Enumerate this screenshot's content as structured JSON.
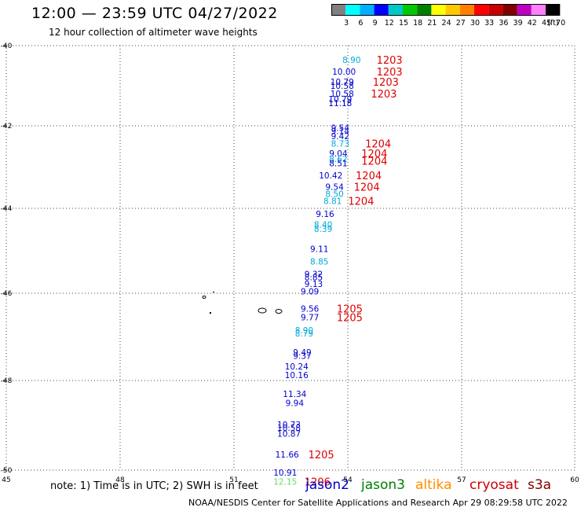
{
  "header": {
    "title": "12:00 — 23:59 UTC 04/27/2022",
    "subtitle": "12 hour collection of altimeter wave heights"
  },
  "colorbar": {
    "colors": [
      "#808080",
      "#00ffff",
      "#00b0ff",
      "#0000ff",
      "#00c8c8",
      "#00c800",
      "#008000",
      "#ffff00",
      "#ffc800",
      "#ff8000",
      "#ff0000",
      "#c80000",
      "#800000",
      "#c000c0",
      "#ff80ff",
      "#000000"
    ],
    "labels": [
      "3",
      "6",
      "9",
      "12",
      "15",
      "18",
      "21",
      "24",
      "27",
      "30",
      "33",
      "36",
      "39",
      "42",
      "45",
      "70"
    ],
    "unit": "(ft)"
  },
  "note": "note:  1) Time is in UTC;  2) SWH is in feet",
  "satellites": [
    {
      "name": "jason2",
      "color": "#0000cc"
    },
    {
      "name": "jason3",
      "color": "#008000"
    },
    {
      "name": "altika",
      "color": "#ff8c00"
    },
    {
      "name": "cryosat",
      "color": "#cc0000"
    },
    {
      "name": "s3a",
      "color": "#800000"
    }
  ],
  "footer": "NOAA/NESDIS Center for Satellite Applications and Research     Apr 29 08:29:58 UTC 2022",
  "chart_data": {
    "type": "scatter",
    "title": "12:00 — 23:59 UTC 04/27/2022",
    "xlim": [
      45,
      60
    ],
    "ylim": [
      -50,
      -40
    ],
    "x_ticks": [
      "45",
      "48",
      "51",
      "54",
      "57",
      "60"
    ],
    "y_ticks": [
      "-40",
      "-42",
      "-44",
      "-46",
      "-48",
      "-50"
    ],
    "grid": true,
    "swh_points": [
      {
        "x": 54.1,
        "y": -40.35,
        "v": "8.90",
        "c": "#00aadd"
      },
      {
        "x": 53.9,
        "y": -40.65,
        "v": "10.00",
        "c": "#0000cc"
      },
      {
        "x": 53.85,
        "y": -40.9,
        "v": "10.79",
        "c": "#0000cc"
      },
      {
        "x": 53.85,
        "y": -41.0,
        "v": "10.58",
        "c": "#0000cc"
      },
      {
        "x": 53.85,
        "y": -41.2,
        "v": "10.58",
        "c": "#0000cc"
      },
      {
        "x": 53.8,
        "y": -41.33,
        "v": "10.79",
        "c": "#0000cc"
      },
      {
        "x": 53.8,
        "y": -41.43,
        "v": "11.18",
        "c": "#0000cc"
      },
      {
        "x": 53.8,
        "y": -42.05,
        "v": "9.54",
        "c": "#0000cc"
      },
      {
        "x": 53.8,
        "y": -42.12,
        "v": "9.14",
        "c": "#0000cc"
      },
      {
        "x": 53.8,
        "y": -42.25,
        "v": "9.42",
        "c": "#0000cc"
      },
      {
        "x": 53.8,
        "y": -42.43,
        "v": "8.73",
        "c": "#00aadd"
      },
      {
        "x": 53.75,
        "y": -42.67,
        "v": "9.04",
        "c": "#0000cc"
      },
      {
        "x": 53.75,
        "y": -42.8,
        "v": "8.62",
        "c": "#00aadd"
      },
      {
        "x": 53.75,
        "y": -42.9,
        "v": "8.51",
        "c": "#0000cc"
      },
      {
        "x": 53.55,
        "y": -43.2,
        "v": "10.42",
        "c": "#0000cc"
      },
      {
        "x": 53.65,
        "y": -43.48,
        "v": "9.54",
        "c": "#0000cc"
      },
      {
        "x": 53.65,
        "y": -43.65,
        "v": "8.50",
        "c": "#00aadd"
      },
      {
        "x": 53.6,
        "y": -43.82,
        "v": "8.81",
        "c": "#00aadd"
      },
      {
        "x": 53.4,
        "y": -44.13,
        "v": "9.16",
        "c": "#0000cc"
      },
      {
        "x": 53.35,
        "y": -44.38,
        "v": "8.40",
        "c": "#00aadd"
      },
      {
        "x": 53.35,
        "y": -44.48,
        "v": "8.39",
        "c": "#00aadd"
      },
      {
        "x": 53.25,
        "y": -44.95,
        "v": "9.11",
        "c": "#0000cc"
      },
      {
        "x": 53.25,
        "y": -45.25,
        "v": "8.85",
        "c": "#00aadd"
      },
      {
        "x": 53.1,
        "y": -45.55,
        "v": "9.32",
        "c": "#0000cc"
      },
      {
        "x": 53.1,
        "y": -45.62,
        "v": "8.85",
        "c": "#0000cc"
      },
      {
        "x": 53.1,
        "y": -45.78,
        "v": "9.13",
        "c": "#0000cc"
      },
      {
        "x": 53.0,
        "y": -45.95,
        "v": "9.09",
        "c": "#0000cc"
      },
      {
        "x": 53.0,
        "y": -46.35,
        "v": "9.56",
        "c": "#0000cc"
      },
      {
        "x": 53.0,
        "y": -46.55,
        "v": "9.77",
        "c": "#0000cc"
      },
      {
        "x": 52.85,
        "y": -46.85,
        "v": "8.90",
        "c": "#00aadd"
      },
      {
        "x": 52.85,
        "y": -46.92,
        "v": "8.79",
        "c": "#00aadd"
      },
      {
        "x": 52.8,
        "y": -47.35,
        "v": "9.49",
        "c": "#0000cc"
      },
      {
        "x": 52.8,
        "y": -47.43,
        "v": "9.37",
        "c": "#0000cc"
      },
      {
        "x": 52.65,
        "y": -47.68,
        "v": "10.24",
        "c": "#0000cc"
      },
      {
        "x": 52.65,
        "y": -47.87,
        "v": "10.16",
        "c": "#0000cc"
      },
      {
        "x": 52.6,
        "y": -48.3,
        "v": "11.34",
        "c": "#0000cc"
      },
      {
        "x": 52.6,
        "y": -48.5,
        "v": "9.94",
        "c": "#0000cc"
      },
      {
        "x": 52.45,
        "y": -48.98,
        "v": "10.73",
        "c": "#0000cc"
      },
      {
        "x": 52.45,
        "y": -49.05,
        "v": "10.58",
        "c": "#0000cc"
      },
      {
        "x": 52.45,
        "y": -49.18,
        "v": "10.87",
        "c": "#0000cc"
      },
      {
        "x": 52.4,
        "y": -49.65,
        "v": "11.66",
        "c": "#0000cc"
      },
      {
        "x": 52.35,
        "y": -50.05,
        "v": "10.91",
        "c": "#0000cc"
      },
      {
        "x": 52.35,
        "y": -50.25,
        "v": "12.15",
        "c": "#66dd66"
      }
    ],
    "time_labels": [
      {
        "x": 55.1,
        "y": -40.35,
        "t": "1203"
      },
      {
        "x": 55.1,
        "y": -40.65,
        "t": "1203"
      },
      {
        "x": 55.0,
        "y": -40.9,
        "t": "1203"
      },
      {
        "x": 54.95,
        "y": -41.2,
        "t": "1203"
      },
      {
        "x": 54.8,
        "y": -42.43,
        "t": "1204"
      },
      {
        "x": 54.7,
        "y": -42.67,
        "t": "1204"
      },
      {
        "x": 54.7,
        "y": -42.85,
        "t": "1204"
      },
      {
        "x": 54.55,
        "y": -43.2,
        "t": "1204"
      },
      {
        "x": 54.5,
        "y": -43.48,
        "t": "1204"
      },
      {
        "x": 54.35,
        "y": -43.82,
        "t": "1204"
      },
      {
        "x": 54.05,
        "y": -46.35,
        "t": "1205"
      },
      {
        "x": 54.05,
        "y": -46.55,
        "t": "1205"
      },
      {
        "x": 53.3,
        "y": -49.65,
        "t": "1205"
      },
      {
        "x": 53.2,
        "y": -50.25,
        "t": "1206"
      }
    ]
  }
}
